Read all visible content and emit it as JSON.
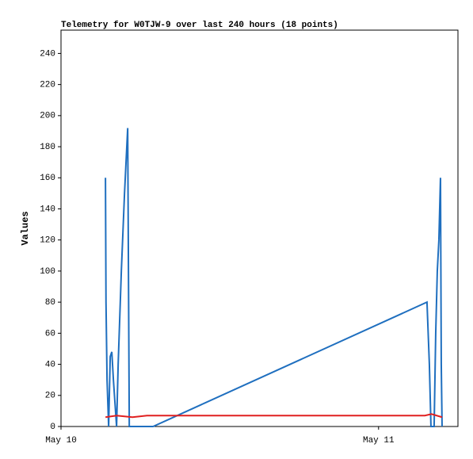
{
  "chart_data": {
    "type": "line",
    "title": "Telemetry for W0TJW-9 over last 240 hours (18 points)",
    "y_label": "Values",
    "xlim": [
      0,
      30
    ],
    "xticks": [
      {
        "value": 0,
        "label": "May 10"
      },
      {
        "value": 24,
        "label": "May 11"
      }
    ],
    "ylim": [
      0,
      255
    ],
    "yticks": [
      0,
      20,
      40,
      60,
      80,
      100,
      120,
      140,
      160,
      180,
      200,
      220,
      240
    ],
    "series": [
      {
        "color": "#1f6fbf",
        "x": [
          3.36,
          3.4,
          3.48,
          3.6,
          3.72,
          3.84,
          3.96,
          4.2,
          4.32,
          4.56,
          4.8,
          5.04,
          5.16,
          6.96,
          27.66,
          27.84,
          27.96,
          28.2,
          28.32,
          28.44,
          28.56,
          28.68,
          28.74,
          28.8
        ],
        "values": [
          160,
          80,
          30,
          0,
          45,
          48,
          30,
          0,
          40,
          100,
          150,
          192,
          0,
          0,
          80,
          40,
          0,
          0,
          60,
          100,
          120,
          160,
          40,
          0
        ]
      },
      {
        "color": "#e02020",
        "x": [
          3.36,
          4.2,
          5.4,
          6.5,
          20,
          27.5,
          28.0,
          28.8
        ],
        "values": [
          6,
          7,
          6,
          7,
          7,
          7,
          8,
          6
        ]
      }
    ]
  }
}
